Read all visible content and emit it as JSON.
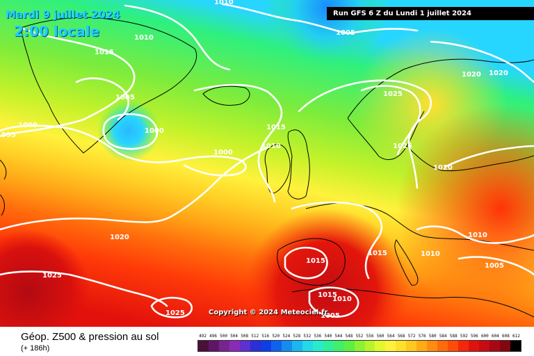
{
  "header": {
    "date": "Mardi 9 juillet 2024",
    "time": "2:00 locale",
    "run": "Run GFS 6 Z du Lundi 1 juillet 2024"
  },
  "copyright": "Copyright © 2024 Meteociel.fr",
  "footer": {
    "title": "Géop. Z500 & pression au sol",
    "range": "(+ 186h)"
  },
  "isobar_labels": [
    "1010",
    "1005",
    "1010",
    "1015",
    "1005",
    "1000",
    "995",
    "1000",
    "1000",
    "1015",
    "1010",
    "1025",
    "1020",
    "1020",
    "1025",
    "1020",
    "1020",
    "1010",
    "1015",
    "1015",
    "1010",
    "1010",
    "1005",
    "1025",
    "1025",
    "1015",
    "1010",
    "1005"
  ],
  "scale": {
    "values": [
      "492",
      "496",
      "500",
      "504",
      "508",
      "512",
      "516",
      "520",
      "524",
      "528",
      "532",
      "536",
      "540",
      "544",
      "548",
      "552",
      "556",
      "560",
      "564",
      "568",
      "572",
      "576",
      "580",
      "584",
      "588",
      "592",
      "596",
      "600",
      "604",
      "608",
      "612"
    ],
    "colors": [
      "#4b0f3b",
      "#5e1767",
      "#78248f",
      "#8a2bb8",
      "#5f2fcf",
      "#2a2fd8",
      "#0f3ee8",
      "#0f62f0",
      "#138ef0",
      "#1ab7f2",
      "#23d8ea",
      "#27eccc",
      "#2ef09a",
      "#42ef6a",
      "#5cf042",
      "#8cf232",
      "#b9f42a",
      "#e3f82c",
      "#fff23c",
      "#ffe028",
      "#ffc81e",
      "#ffac14",
      "#ff8c0e",
      "#ff6a0a",
      "#ff4a08",
      "#f5260a",
      "#e0120e",
      "#c80a12",
      "#a80812",
      "#86060f",
      "#000000"
    ]
  },
  "colors": {
    "title_cyan": "#1fd0ff",
    "isobar": "#ffffff",
    "coastline": "#000000"
  }
}
